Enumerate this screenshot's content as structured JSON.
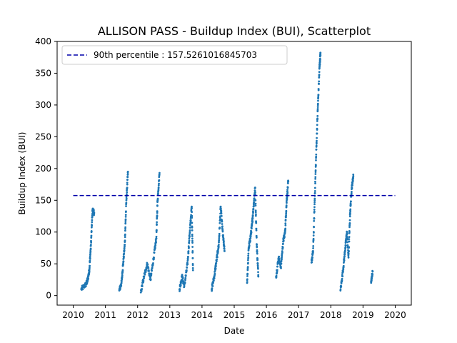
{
  "chart_data": {
    "type": "scatter",
    "title": "ALLISON PASS - Buildup Index (BUI), Scatterplot",
    "xlabel": "Date",
    "ylabel": "Buildup Index (BUI)",
    "xlim": [
      2009.5,
      2020.5
    ],
    "ylim": [
      -15,
      400
    ],
    "x_ticks": [
      2010,
      2011,
      2012,
      2013,
      2014,
      2015,
      2016,
      2017,
      2018,
      2019,
      2020
    ],
    "y_ticks": [
      0,
      50,
      100,
      150,
      200,
      250,
      300,
      350,
      400
    ],
    "grid": false,
    "legend": {
      "placement": "upper-left",
      "entries": [
        "90th percentile : 157.5261016845703"
      ]
    },
    "reference_line": {
      "value": 157.5261016845703,
      "x_range": [
        2010,
        2020
      ],
      "color": "#0000aa",
      "style": "dashed"
    },
    "point_color": "#1f77b4",
    "seasons": [
      {
        "x": [
          2010.25,
          2010.4,
          2010.45,
          2010.5,
          2010.55,
          2010.6,
          2010.65
        ],
        "y": [
          10,
          18,
          25,
          40,
          80,
          135,
          130
        ]
      },
      {
        "x": [
          2011.43,
          2011.5,
          2011.55,
          2011.6,
          2011.65,
          2011.7
        ],
        "y": [
          8,
          20,
          50,
          80,
          150,
          195
        ]
      },
      {
        "x": [
          2012.1,
          2012.2,
          2012.3,
          2012.4,
          2012.5,
          2012.58,
          2012.62,
          2012.68
        ],
        "y": [
          5,
          30,
          50,
          25,
          60,
          90,
          150,
          193
        ]
      },
      {
        "x": [
          2013.3,
          2013.38,
          2013.45,
          2013.55,
          2013.62,
          2013.68,
          2013.72
        ],
        "y": [
          10,
          30,
          15,
          50,
          100,
          140,
          40
        ]
      },
      {
        "x": [
          2014.3,
          2014.38,
          2014.45,
          2014.52,
          2014.58,
          2014.65,
          2014.7
        ],
        "y": [
          10,
          30,
          55,
          80,
          140,
          95,
          70
        ]
      },
      {
        "x": [
          2015.4,
          2015.45,
          2015.5,
          2015.55,
          2015.6,
          2015.65,
          2015.7,
          2015.75
        ],
        "y": [
          20,
          75,
          90,
          110,
          140,
          170,
          80,
          30
        ]
      },
      {
        "x": [
          2016.3,
          2016.38,
          2016.45,
          2016.52,
          2016.58,
          2016.63,
          2016.68
        ],
        "y": [
          30,
          60,
          45,
          85,
          100,
          150,
          180
        ]
      },
      {
        "x": [
          2017.4,
          2017.45,
          2017.5,
          2017.55,
          2017.6,
          2017.65,
          2017.68
        ],
        "y": [
          52,
          70,
          150,
          230,
          300,
          360,
          382
        ]
      },
      {
        "x": [
          2018.3,
          2018.38,
          2018.45,
          2018.5,
          2018.55,
          2018.6,
          2018.65,
          2018.7
        ],
        "y": [
          8,
          40,
          75,
          100,
          60,
          130,
          170,
          188
        ]
      },
      {
        "x": [
          2019.25,
          2019.3
        ],
        "y": [
          22,
          38
        ]
      }
    ]
  }
}
